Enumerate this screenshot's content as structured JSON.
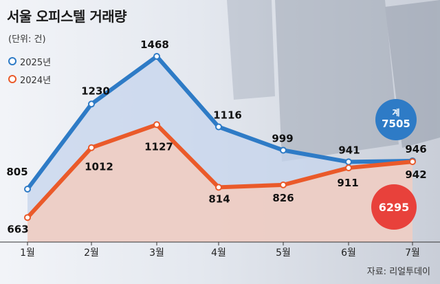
{
  "title": "서울 오피스텔 거래량",
  "unit": "(단위: 건)",
  "source": "자료: 리얼투데이",
  "legend": [
    "2025년",
    "2024년"
  ],
  "total_2025_label": "계",
  "total_2025_value": "7505",
  "total_2024_value": "6295",
  "colors": {
    "series_2025": "#2e7bc6",
    "series_2024": "#ea5a2a",
    "badge_2025": "#2e7bc6",
    "badge_2024": "#e8413b"
  },
  "chart_data": {
    "type": "line",
    "categories": [
      "1월",
      "2월",
      "3월",
      "4월",
      "5월",
      "6월",
      "7월"
    ],
    "series": [
      {
        "name": "2025년",
        "values": [
          805,
          1230,
          1468,
          1116,
          999,
          941,
          946
        ]
      },
      {
        "name": "2024년",
        "values": [
          663,
          1012,
          1127,
          814,
          826,
          911,
          942
        ]
      }
    ],
    "grid": false,
    "legend_position": "top-left"
  }
}
